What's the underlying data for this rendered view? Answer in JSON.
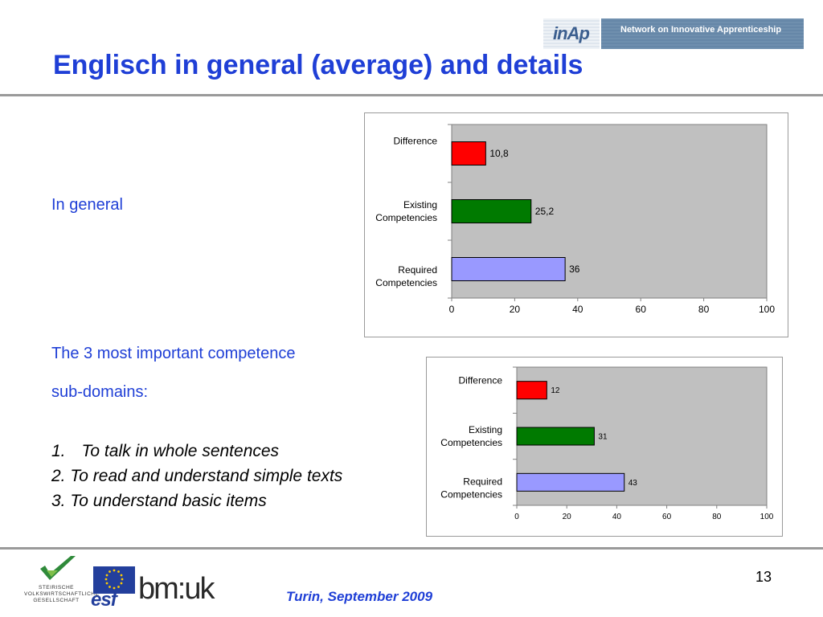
{
  "header": {
    "title": "Englisch in general  (average) and details",
    "logo_text": "inAp",
    "banner_text": "Network on Innovative Apprenticeship"
  },
  "left": {
    "in_general": "In general",
    "subdomains_line1": "The 3 most important competence",
    "subdomains_line2": "sub-domains:",
    "items": [
      {
        "num": "1.",
        "text": "To talk in whole sentences"
      },
      {
        "num": "2.",
        "text": "To read and understand simple texts"
      },
      {
        "num": "3.",
        "text": "To understand basic items"
      }
    ]
  },
  "chart_data": [
    {
      "type": "bar",
      "orientation": "horizontal",
      "categories": [
        "Difference",
        "Existing Competencies",
        "Required Competencies"
      ],
      "category_lines": [
        [
          "Difference"
        ],
        [
          "Existing",
          "Competencies"
        ],
        [
          "Required",
          "Competencies"
        ]
      ],
      "values": [
        10.8,
        25.2,
        36
      ],
      "value_labels": [
        "10,8",
        "25,2",
        "36"
      ],
      "colors": [
        "#ff0000",
        "#007a00",
        "#9999ff"
      ],
      "xlim": [
        0,
        100
      ],
      "ticks": [
        "0",
        "20",
        "40",
        "60",
        "80",
        "100"
      ],
      "plot_background": "#c0c0c0"
    },
    {
      "type": "bar",
      "orientation": "horizontal",
      "categories": [
        "Difference",
        "Existing Competencies",
        "Required Competencies"
      ],
      "category_lines": [
        [
          "Difference"
        ],
        [
          "Existing",
          "Competencies"
        ],
        [
          "Required",
          "Competencies"
        ]
      ],
      "values": [
        12,
        31,
        43
      ],
      "value_labels": [
        "12",
        "31",
        "43"
      ],
      "colors": [
        "#ff0000",
        "#007a00",
        "#9999ff"
      ],
      "xlim": [
        0,
        100
      ],
      "ticks": [
        "0",
        "20",
        "40",
        "60",
        "80",
        "100"
      ],
      "plot_background": "#c0c0c0"
    }
  ],
  "footer": {
    "page_number": "13",
    "date": "Turin, September 2009",
    "logo1_lines": [
      "STEIRISCHE",
      "VOLKSWIRTSCHAFTLICHE",
      "GESELLSCHAFT"
    ],
    "logo2_text": "esf",
    "logo3_text": "bm:uk"
  }
}
